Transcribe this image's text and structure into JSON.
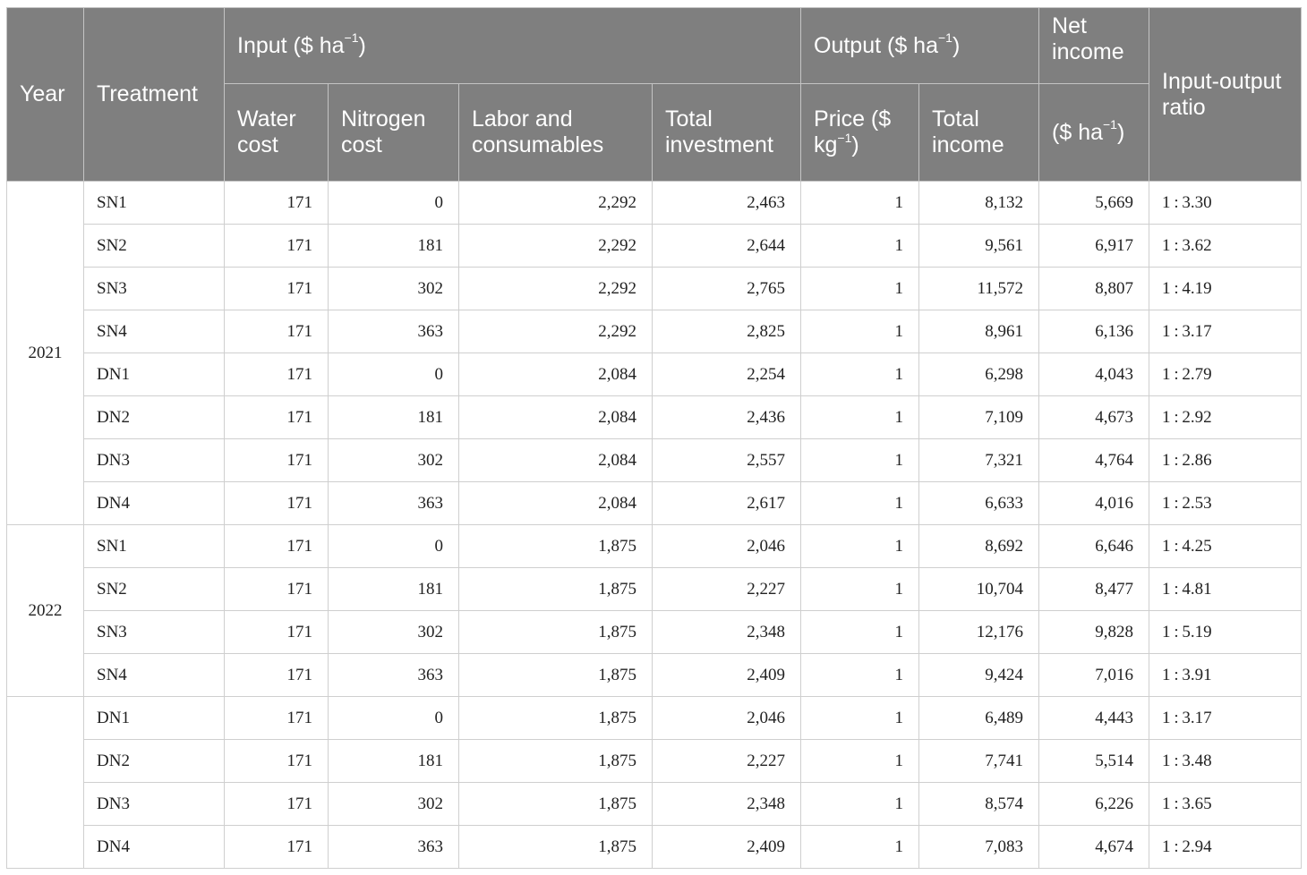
{
  "headers": {
    "year": "Year",
    "treatment": "Treatment",
    "input_group": "Input ($ ha",
    "output_group": "Output ($ ha",
    "net_income_top": "Net income",
    "net_income_unit": "($ ha",
    "ratio": "Input-output ratio",
    "water_cost": "Water cost",
    "nitrogen_cost": "Nitrogen cost",
    "labor": "Labor and consumables",
    "total_investment": "Total investment",
    "price": "Price ($ kg",
    "total_income": "Total income",
    "sup_neg1": "−1",
    "close_paren": ")"
  },
  "groups": [
    {
      "year": "2021",
      "rows": [
        [
          "SN1",
          "171",
          "0",
          "2,292",
          "2,463",
          "1",
          "8,132",
          "5,669",
          "1 : 3.30"
        ],
        [
          "SN2",
          "171",
          "181",
          "2,292",
          "2,644",
          "1",
          "9,561",
          "6,917",
          "1 : 3.62"
        ],
        [
          "SN3",
          "171",
          "302",
          "2,292",
          "2,765",
          "1",
          "11,572",
          "8,807",
          "1 : 4.19"
        ],
        [
          "SN4",
          "171",
          "363",
          "2,292",
          "2,825",
          "1",
          "8,961",
          "6,136",
          "1 : 3.17"
        ],
        [
          "DN1",
          "171",
          "0",
          "2,084",
          "2,254",
          "1",
          "6,298",
          "4,043",
          "1 : 2.79"
        ],
        [
          "DN2",
          "171",
          "181",
          "2,084",
          "2,436",
          "1",
          "7,109",
          "4,673",
          "1 : 2.92"
        ],
        [
          "DN3",
          "171",
          "302",
          "2,084",
          "2,557",
          "1",
          "7,321",
          "4,764",
          "1 : 2.86"
        ],
        [
          "DN4",
          "171",
          "363",
          "2,084",
          "2,617",
          "1",
          "6,633",
          "4,016",
          "1 : 2.53"
        ]
      ]
    },
    {
      "year": "2022",
      "rows": [
        [
          "SN1",
          "171",
          "0",
          "1,875",
          "2,046",
          "1",
          "8,692",
          "6,646",
          "1 : 4.25"
        ],
        [
          "SN2",
          "171",
          "181",
          "1,875",
          "2,227",
          "1",
          "10,704",
          "8,477",
          "1 : 4.81"
        ],
        [
          "SN3",
          "171",
          "302",
          "1,875",
          "2,348",
          "1",
          "12,176",
          "9,828",
          "1 : 5.19"
        ],
        [
          "SN4",
          "171",
          "363",
          "1,875",
          "2,409",
          "1",
          "9,424",
          "7,016",
          "1 : 3.91"
        ]
      ]
    },
    {
      "year": "",
      "rows": [
        [
          "DN1",
          "171",
          "0",
          "1,875",
          "2,046",
          "1",
          "6,489",
          "4,443",
          "1 : 3.17"
        ],
        [
          "DN2",
          "171",
          "181",
          "1,875",
          "2,227",
          "1",
          "7,741",
          "5,514",
          "1 : 3.48"
        ],
        [
          "DN3",
          "171",
          "302",
          "1,875",
          "2,348",
          "1",
          "8,574",
          "6,226",
          "1 : 3.65"
        ],
        [
          "DN4",
          "171",
          "363",
          "1,875",
          "2,409",
          "1",
          "7,083",
          "4,674",
          "1 : 2.94"
        ]
      ]
    }
  ]
}
